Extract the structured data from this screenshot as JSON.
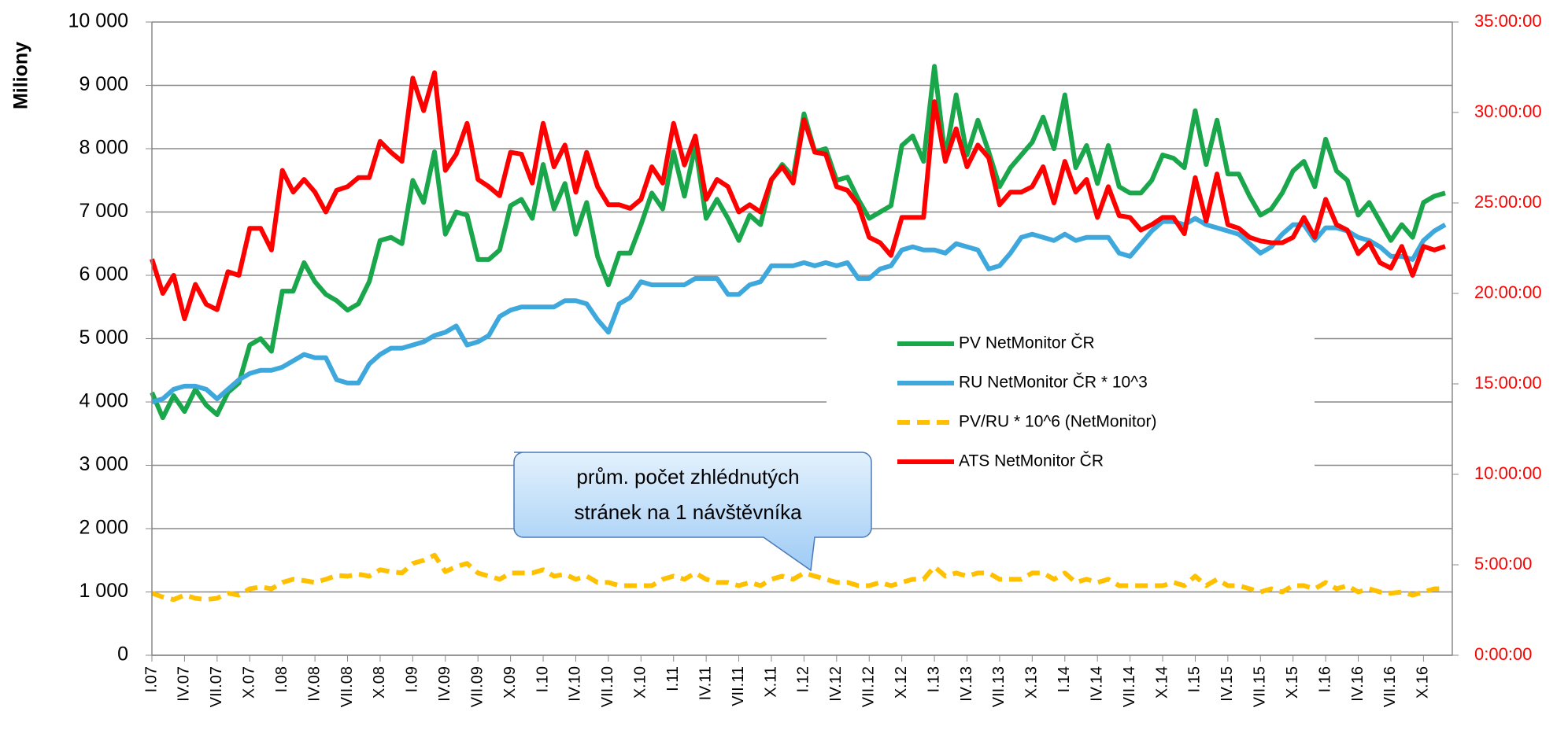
{
  "chart_data": {
    "type": "line",
    "ylabel": "Miliony",
    "annotation": [
      "prům. počet zhlédnutých",
      "stránek na 1 návštěvníka"
    ],
    "categories": [
      "I.07",
      null,
      null,
      "IV.07",
      null,
      null,
      "VII.07",
      null,
      null,
      "X.07",
      null,
      null,
      "I.08",
      null,
      null,
      "IV.08",
      null,
      null,
      "VII.08",
      null,
      null,
      "X.08",
      null,
      null,
      "I.09",
      null,
      null,
      "IV.09",
      null,
      null,
      "VII.09",
      null,
      null,
      "X.09",
      null,
      null,
      "I.10",
      null,
      null,
      "IV.10",
      null,
      null,
      "VII.10",
      null,
      null,
      "X.10",
      null,
      null,
      "I.11",
      null,
      null,
      "IV.11",
      null,
      null,
      "VII.11",
      null,
      null,
      "X.11",
      null,
      null,
      "I.12",
      null,
      null,
      "IV.12",
      null,
      null,
      "VII.12",
      null,
      null,
      "X.12",
      null,
      null,
      "I.13",
      null,
      null,
      "IV.13",
      null,
      null,
      "VII.13",
      null,
      null,
      "X.13",
      null,
      null,
      "I.14",
      null,
      null,
      "IV.14",
      null,
      null,
      "VII.14",
      null,
      null,
      "X.14",
      null,
      null,
      "I.15",
      null,
      null,
      "IV.15",
      null,
      null,
      "VII.15",
      null,
      null,
      "X.15",
      null,
      null,
      "I.16",
      null,
      null,
      "IV.16",
      null,
      null,
      "VII.16",
      null,
      null,
      "X.16",
      null,
      null
    ],
    "series": [
      {
        "name": "PV NetMonitor ČR",
        "color": "#1aa64b",
        "values": [
          4150,
          3750,
          4100,
          3850,
          4200,
          3950,
          3800,
          4150,
          4300,
          4900,
          5000,
          4800,
          5750,
          5750,
          6200,
          5900,
          5700,
          5600,
          5450,
          5550,
          5900,
          6550,
          6600,
          6500,
          7500,
          7150,
          7950,
          6650,
          7000,
          6950,
          6250,
          6250,
          6400,
          7100,
          7200,
          6900,
          7750,
          7050,
          7450,
          6650,
          7150,
          6300,
          5850,
          6350,
          6350,
          6800,
          7300,
          7050,
          7950,
          7250,
          8050,
          6900,
          7200,
          6900,
          6550,
          6950,
          6800,
          7500,
          7750,
          7550,
          8550,
          7950,
          8000,
          7500,
          7550,
          7200,
          6900,
          7000,
          7100,
          8050,
          8200,
          7800,
          9300,
          7850,
          8850,
          7900,
          8450,
          7950,
          7400,
          7700,
          7900,
          8100,
          8500,
          8000,
          8850,
          7700,
          8050,
          7450,
          8050,
          7400,
          7300,
          7300,
          7500,
          7900,
          7850,
          7700,
          8600,
          7750,
          8450,
          7600,
          7600,
          7250,
          6950,
          7050,
          7300,
          7650,
          7800,
          7400,
          8150,
          7650,
          7500,
          6950,
          7150,
          6850,
          6550,
          6800,
          6600,
          7150,
          7250,
          7300
        ]
      },
      {
        "name": "RU NetMonitor ČR * 10^3",
        "color": "#3ea8dc",
        "values": [
          4000,
          4050,
          4200,
          4250,
          4250,
          4200,
          4050,
          4200,
          4350,
          4450,
          4500,
          4500,
          4550,
          4650,
          4750,
          4700,
          4700,
          4350,
          4300,
          4300,
          4600,
          4750,
          4850,
          4850,
          4900,
          4950,
          5050,
          5100,
          5200,
          4900,
          4950,
          5050,
          5350,
          5450,
          5500,
          5500,
          5500,
          5500,
          5600,
          5600,
          5550,
          5300,
          5100,
          5550,
          5650,
          5900,
          5850,
          5850,
          5850,
          5850,
          5950,
          5950,
          5950,
          5700,
          5700,
          5850,
          5900,
          6150,
          6150,
          6150,
          6200,
          6150,
          6200,
          6150,
          6200,
          5950,
          5950,
          6100,
          6150,
          6400,
          6450,
          6400,
          6400,
          6350,
          6500,
          6450,
          6400,
          6100,
          6150,
          6350,
          6600,
          6650,
          6600,
          6550,
          6650,
          6550,
          6600,
          6600,
          6600,
          6350,
          6300,
          6500,
          6700,
          6850,
          6850,
          6800,
          6900,
          6800,
          6750,
          6700,
          6650,
          6500,
          6350,
          6450,
          6650,
          6800,
          6800,
          6550,
          6750,
          6750,
          6700,
          6600,
          6550,
          6450,
          6300,
          6300,
          6250,
          6550,
          6700,
          6800
        ]
      },
      {
        "name": "PV/RU * 10^6 (NetMonitor)",
        "color": "#ffc000",
        "dashed": true,
        "values": [
          980,
          920,
          880,
          950,
          900,
          880,
          900,
          980,
          950,
          1050,
          1080,
          1050,
          1150,
          1200,
          1180,
          1150,
          1200,
          1260,
          1250,
          1280,
          1250,
          1350,
          1320,
          1300,
          1450,
          1500,
          1580,
          1320,
          1400,
          1450,
          1300,
          1250,
          1200,
          1300,
          1300,
          1300,
          1350,
          1250,
          1280,
          1200,
          1250,
          1150,
          1150,
          1100,
          1100,
          1100,
          1100,
          1200,
          1250,
          1200,
          1300,
          1200,
          1150,
          1150,
          1100,
          1150,
          1100,
          1200,
          1250,
          1200,
          1300,
          1250,
          1200,
          1150,
          1150,
          1100,
          1100,
          1150,
          1100,
          1150,
          1200,
          1200,
          1400,
          1250,
          1300,
          1250,
          1300,
          1300,
          1200,
          1200,
          1200,
          1300,
          1300,
          1200,
          1300,
          1150,
          1200,
          1150,
          1200,
          1100,
          1100,
          1100,
          1100,
          1100,
          1150,
          1100,
          1250,
          1100,
          1200,
          1100,
          1100,
          1050,
          1000,
          1050,
          1000,
          1100,
          1100,
          1050,
          1150,
          1050,
          1100,
          1000,
          1050,
          1000,
          980,
          1000,
          950,
          1000,
          1050,
          1050
        ]
      },
      {
        "name": "ATS NetMonitor ČR",
        "color": "#ff0000",
        "axis": "y2",
        "values": [
          21.9,
          20.0,
          21.0,
          18.6,
          20.5,
          19.4,
          19.1,
          21.2,
          21.0,
          23.6,
          23.6,
          22.4,
          26.8,
          25.6,
          26.3,
          25.6,
          24.5,
          25.7,
          25.9,
          26.4,
          26.4,
          28.4,
          27.8,
          27.3,
          31.9,
          30.1,
          32.2,
          26.8,
          27.7,
          29.4,
          26.3,
          25.9,
          25.4,
          27.8,
          27.7,
          26.1,
          29.4,
          27.0,
          28.2,
          25.6,
          27.8,
          25.9,
          24.9,
          24.9,
          24.7,
          25.2,
          27.0,
          26.1,
          29.4,
          27.1,
          28.7,
          25.2,
          26.3,
          25.9,
          24.5,
          24.9,
          24.5,
          26.3,
          27.0,
          26.1,
          29.6,
          27.8,
          27.7,
          25.9,
          25.7,
          24.9,
          23.1,
          22.8,
          22.1,
          24.2,
          24.2,
          24.2,
          30.6,
          27.3,
          29.1,
          27.0,
          28.2,
          27.5,
          24.9,
          25.6,
          25.6,
          25.9,
          27.0,
          25.0,
          27.3,
          25.6,
          26.3,
          24.2,
          25.9,
          24.3,
          24.2,
          23.5,
          23.8,
          24.2,
          24.2,
          23.3,
          26.4,
          24.0,
          26.6,
          23.8,
          23.6,
          23.1,
          22.9,
          22.8,
          22.8,
          23.1,
          24.2,
          23.1,
          25.2,
          23.8,
          23.5,
          22.2,
          22.8,
          21.7,
          21.4,
          22.6,
          21.0,
          22.6,
          22.4,
          22.6
        ]
      }
    ],
    "ylim": [
      0,
      10000
    ],
    "yticks": [
      0,
      {
        "value": 1000,
        "label": "1 000"
      },
      {
        "value": 2000,
        "label": "2 000"
      },
      {
        "value": 3000,
        "label": "3 000"
      },
      {
        "value": 4000,
        "label": "4 000"
      },
      {
        "value": 5000,
        "label": "5 000"
      },
      {
        "value": 6000,
        "label": "6 000"
      },
      {
        "value": 7000,
        "label": "7 000"
      },
      {
        "value": 8000,
        "label": "8 000"
      },
      {
        "value": 9000,
        "label": "9 000"
      },
      {
        "value": 10000,
        "label": "10 000"
      }
    ],
    "y2lim": [
      0,
      35
    ],
    "y2ticks": [
      {
        "value": 0,
        "label": "0:00:00"
      },
      {
        "value": 5,
        "label": "5:00:00"
      },
      {
        "value": 10,
        "label": "10:00:00"
      },
      {
        "value": 15,
        "label": "15:00:00"
      },
      {
        "value": 20,
        "label": "20:00:00"
      },
      {
        "value": 25,
        "label": "25:00:00"
      },
      {
        "value": 30,
        "label": "30:00:00"
      },
      {
        "value": 35,
        "label": "35:00:00"
      }
    ],
    "grid": true
  }
}
